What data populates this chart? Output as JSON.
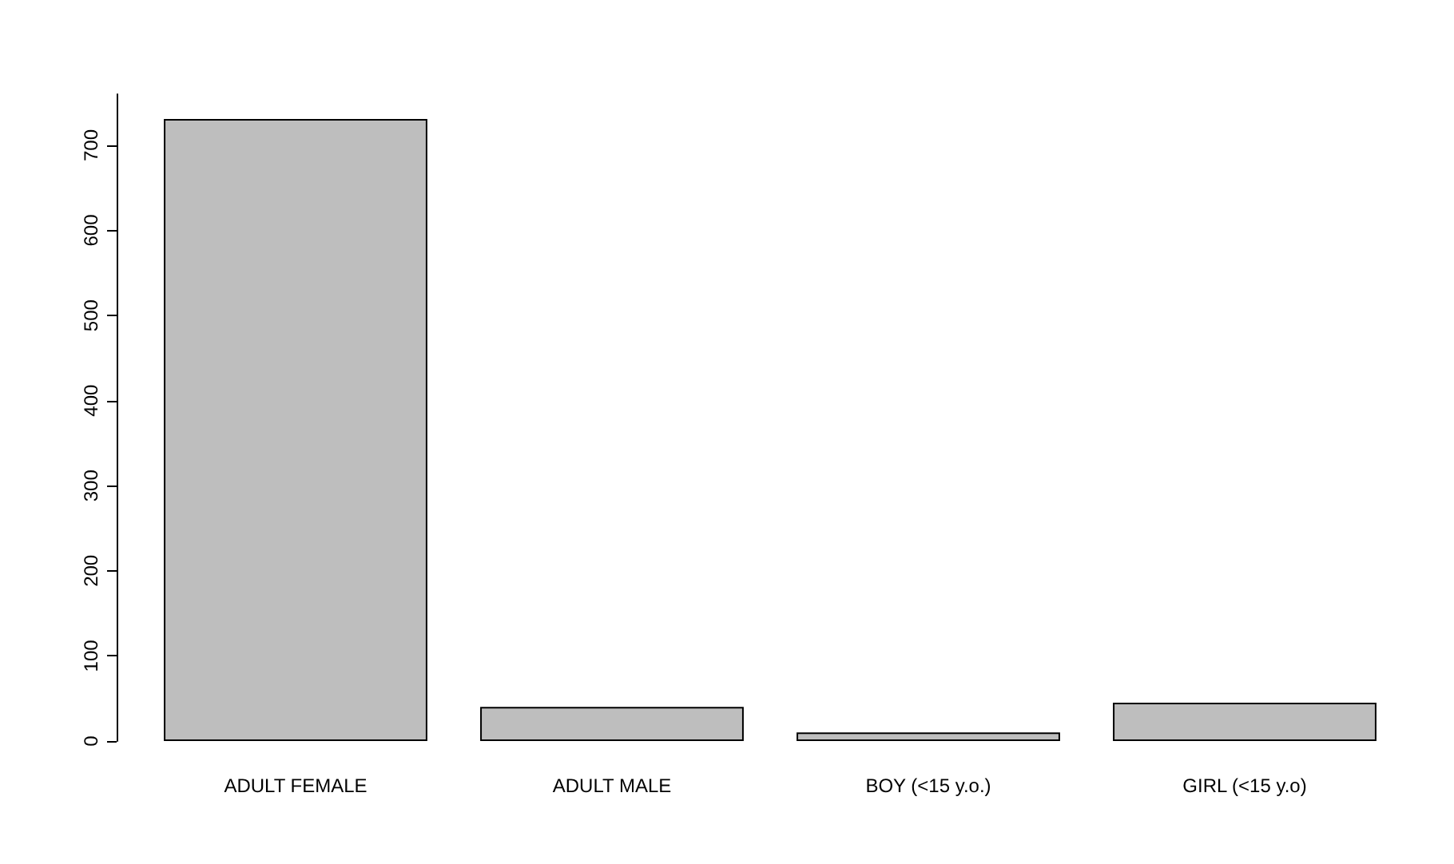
{
  "chart_data": {
    "type": "bar",
    "categories": [
      "ADULT FEMALE",
      "ADULT MALE",
      "BOY (<15 y.o.)",
      "GIRL (<15 y.o)"
    ],
    "values": [
      731,
      40,
      10,
      45
    ],
    "color": "#bebebe",
    "ylim": [
      0,
      760
    ],
    "yticks": [
      0,
      100,
      200,
      300,
      400,
      500,
      600,
      700
    ],
    "grid": false
  }
}
